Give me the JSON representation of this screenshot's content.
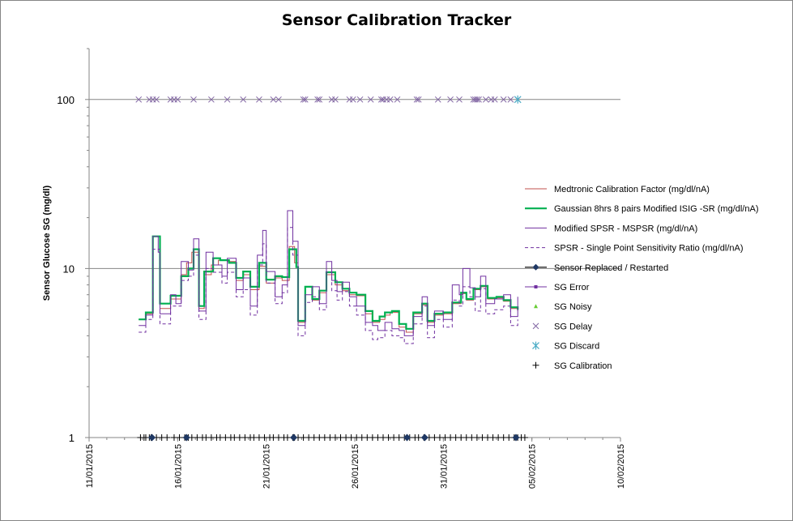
{
  "chart_data": {
    "type": "line",
    "title": "Sensor Calibration Tracker",
    "ylabel": "Sensor Glucose  SG  (mg/dl)",
    "xlabel": "",
    "y_scale": "log",
    "ylim": [
      1,
      200
    ],
    "y_ticks": [
      1,
      10,
      100
    ],
    "x_range_days": [
      "2015-01-11",
      "2015-02-10"
    ],
    "x_ticks": [
      "11/01/2015",
      "16/01/2015",
      "21/01/2015",
      "26/01/2015",
      "31/01/2015",
      "05/02/2015",
      "10/02/2015"
    ],
    "gridlines": "horizontal at 10 and 100",
    "legend_position": "right",
    "colors": {
      "medtronic": "#c0504d",
      "gaussian": "#00b050",
      "mspsr": "#7030a0",
      "spsr": "#7030a0",
      "replaced": "#1f3864",
      "sg_error": "#7030a0",
      "sg_noisy": "#66cc33",
      "sg_delay": "#8064a2",
      "sg_discard": "#4bacc6",
      "sg_calibration": "#000000"
    },
    "legend": [
      {
        "key": "medtronic",
        "label": "Medtronic Calibration Factor (mg/dl/nA)",
        "style": "line"
      },
      {
        "key": "gaussian",
        "label": "Gaussian 8hrs 8 pairs  Modified ISIG  -SR (mg/dl/nA)",
        "style": "line-thick"
      },
      {
        "key": "mspsr",
        "label": "Modified SPSR - MSPSR (mg/dl/nA)",
        "style": "line"
      },
      {
        "key": "spsr",
        "label": "SPSR - Single Point Sensitivity Ratio (mg/dl/nA)",
        "style": "dash"
      },
      {
        "key": "replaced",
        "label": "Sensor Replaced / Restarted",
        "style": "line-diamond"
      },
      {
        "key": "sg_error",
        "label": "SG Error",
        "style": "line-square"
      },
      {
        "key": "sg_noisy",
        "label": "SG Noisy",
        "style": "triangle"
      },
      {
        "key": "sg_delay",
        "label": "SG Delay",
        "style": "x"
      },
      {
        "key": "sg_discard",
        "label": "SG Discard",
        "style": "star"
      },
      {
        "key": "sg_calibration",
        "label": "SG Calibration",
        "style": "plus"
      }
    ],
    "series": [
      {
        "key": "medtronic",
        "style": "step",
        "points": [
          [
            13.8,
            5.0
          ],
          [
            14.2,
            5.4
          ],
          [
            14.6,
            15.5
          ],
          [
            15.0,
            5.8
          ],
          [
            15.6,
            6.6
          ],
          [
            16.2,
            9.2
          ],
          [
            16.5,
            10.8
          ],
          [
            16.8,
            12.5
          ],
          [
            17.2,
            5.8
          ],
          [
            17.5,
            9.2
          ],
          [
            17.9,
            10.5
          ],
          [
            18.3,
            11.2
          ],
          [
            18.8,
            11.0
          ],
          [
            19.3,
            8.5
          ],
          [
            19.7,
            9.2
          ],
          [
            20.1,
            7.5
          ],
          [
            20.6,
            10.3
          ],
          [
            21.0,
            8.2
          ],
          [
            21.5,
            8.8
          ],
          [
            21.9,
            8.5
          ],
          [
            22.3,
            13.5
          ],
          [
            22.6,
            10.8
          ],
          [
            22.8,
            4.8
          ],
          [
            23.2,
            7.8
          ],
          [
            23.6,
            6.5
          ],
          [
            24.0,
            7.2
          ],
          [
            24.4,
            9.2
          ],
          [
            24.9,
            8.0
          ],
          [
            25.3,
            7.4
          ],
          [
            25.7,
            7.0
          ],
          [
            26.1,
            6.9
          ],
          [
            26.6,
            5.4
          ],
          [
            27.0,
            4.8
          ],
          [
            27.4,
            5.0
          ],
          [
            27.7,
            5.3
          ],
          [
            28.0,
            5.5
          ],
          [
            28.5,
            4.5
          ],
          [
            28.9,
            4.2
          ],
          [
            29.3,
            5.4
          ],
          [
            29.8,
            6.1
          ],
          [
            30.1,
            4.8
          ],
          [
            30.5,
            5.3
          ],
          [
            31.0,
            5.4
          ],
          [
            31.5,
            6.2
          ],
          [
            32.0,
            7.1
          ],
          [
            32.3,
            6.5
          ],
          [
            32.7,
            7.5
          ],
          [
            33.1,
            7.8
          ],
          [
            33.5,
            6.6
          ],
          [
            34.0,
            6.7
          ],
          [
            34.4,
            6.4
          ],
          [
            34.8,
            5.8
          ],
          [
            35.2,
            5.6
          ]
        ]
      },
      {
        "key": "gaussian",
        "style": "step",
        "points": [
          [
            13.8,
            5.0
          ],
          [
            14.2,
            5.5
          ],
          [
            14.6,
            15.5
          ],
          [
            15.0,
            6.2
          ],
          [
            15.6,
            6.9
          ],
          [
            16.2,
            9.0
          ],
          [
            16.6,
            10.0
          ],
          [
            16.9,
            13.0
          ],
          [
            17.2,
            6.0
          ],
          [
            17.5,
            9.6
          ],
          [
            18.0,
            11.5
          ],
          [
            18.4,
            11.2
          ],
          [
            18.9,
            10.8
          ],
          [
            19.3,
            8.8
          ],
          [
            19.7,
            9.6
          ],
          [
            20.1,
            7.8
          ],
          [
            20.6,
            10.8
          ],
          [
            21.0,
            8.6
          ],
          [
            21.5,
            9.0
          ],
          [
            21.9,
            8.9
          ],
          [
            22.3,
            13.0
          ],
          [
            22.7,
            10.2
          ],
          [
            22.8,
            4.9
          ],
          [
            23.2,
            7.8
          ],
          [
            23.6,
            6.6
          ],
          [
            24.0,
            7.4
          ],
          [
            24.4,
            9.5
          ],
          [
            24.9,
            8.3
          ],
          [
            25.3,
            7.6
          ],
          [
            25.7,
            7.2
          ],
          [
            26.1,
            7.0
          ],
          [
            26.6,
            5.6
          ],
          [
            27.0,
            4.9
          ],
          [
            27.4,
            5.2
          ],
          [
            27.7,
            5.5
          ],
          [
            28.1,
            5.6
          ],
          [
            28.5,
            4.7
          ],
          [
            28.9,
            4.4
          ],
          [
            29.3,
            5.5
          ],
          [
            29.8,
            6.2
          ],
          [
            30.1,
            4.9
          ],
          [
            30.5,
            5.4
          ],
          [
            31.0,
            5.5
          ],
          [
            31.5,
            6.3
          ],
          [
            32.0,
            7.2
          ],
          [
            32.3,
            6.6
          ],
          [
            32.7,
            7.6
          ],
          [
            33.1,
            7.9
          ],
          [
            33.5,
            6.7
          ],
          [
            34.0,
            6.8
          ],
          [
            34.4,
            6.5
          ],
          [
            34.8,
            5.9
          ],
          [
            35.2,
            5.7
          ]
        ]
      },
      {
        "key": "mspsr",
        "style": "step",
        "points": [
          [
            13.8,
            4.6
          ],
          [
            14.2,
            5.3
          ],
          [
            14.6,
            15.5
          ],
          [
            14.9,
            12.5
          ],
          [
            15.0,
            5.4
          ],
          [
            15.6,
            7.0
          ],
          [
            15.9,
            6.2
          ],
          [
            16.2,
            11.0
          ],
          [
            16.6,
            9.8
          ],
          [
            16.9,
            15.0
          ],
          [
            17.2,
            5.6
          ],
          [
            17.6,
            12.5
          ],
          [
            18.0,
            10.5
          ],
          [
            18.5,
            9.0
          ],
          [
            18.8,
            11.5
          ],
          [
            19.3,
            7.5
          ],
          [
            19.7,
            8.8
          ],
          [
            20.1,
            6.0
          ],
          [
            20.5,
            12.0
          ],
          [
            20.8,
            16.8
          ],
          [
            21.0,
            9.6
          ],
          [
            21.5,
            6.8
          ],
          [
            21.9,
            8.0
          ],
          [
            22.2,
            22.0
          ],
          [
            22.5,
            14.5
          ],
          [
            22.8,
            4.6
          ],
          [
            23.2,
            7.0
          ],
          [
            23.6,
            7.8
          ],
          [
            24.0,
            6.2
          ],
          [
            24.4,
            11.0
          ],
          [
            24.7,
            8.5
          ],
          [
            25.0,
            7.3
          ],
          [
            25.3,
            8.3
          ],
          [
            25.7,
            6.8
          ],
          [
            26.1,
            6.0
          ],
          [
            26.6,
            4.8
          ],
          [
            27.0,
            4.6
          ],
          [
            27.3,
            4.3
          ],
          [
            27.7,
            4.8
          ],
          [
            28.1,
            4.4
          ],
          [
            28.5,
            4.3
          ],
          [
            28.8,
            4.0
          ],
          [
            29.3,
            5.2
          ],
          [
            29.8,
            6.8
          ],
          [
            30.1,
            4.6
          ],
          [
            30.5,
            5.6
          ],
          [
            31.0,
            5.0
          ],
          [
            31.5,
            8.0
          ],
          [
            31.9,
            7.0
          ],
          [
            32.1,
            10.0
          ],
          [
            32.5,
            7.7
          ],
          [
            32.8,
            6.8
          ],
          [
            33.1,
            9.0
          ],
          [
            33.4,
            6.2
          ],
          [
            33.9,
            6.6
          ],
          [
            34.4,
            7.0
          ],
          [
            34.8,
            5.2
          ],
          [
            35.2,
            6.8
          ]
        ]
      },
      {
        "key": "spsr",
        "style": "step",
        "points": [
          [
            13.8,
            4.2
          ],
          [
            14.2,
            5.0
          ],
          [
            14.6,
            13.0
          ],
          [
            15.0,
            4.7
          ],
          [
            15.6,
            6.0
          ],
          [
            16.2,
            8.5
          ],
          [
            16.6,
            9.0
          ],
          [
            16.9,
            12.0
          ],
          [
            17.2,
            5.0
          ],
          [
            17.6,
            10.0
          ],
          [
            18.0,
            9.5
          ],
          [
            18.5,
            8.2
          ],
          [
            18.8,
            9.5
          ],
          [
            19.3,
            6.8
          ],
          [
            19.7,
            7.5
          ],
          [
            20.1,
            5.3
          ],
          [
            20.5,
            10.5
          ],
          [
            20.8,
            14.0
          ],
          [
            21.0,
            8.2
          ],
          [
            21.5,
            6.2
          ],
          [
            21.9,
            7.2
          ],
          [
            22.2,
            17.5
          ],
          [
            22.5,
            12.0
          ],
          [
            22.8,
            4.0
          ],
          [
            23.2,
            6.3
          ],
          [
            23.6,
            6.8
          ],
          [
            24.0,
            5.7
          ],
          [
            24.4,
            9.5
          ],
          [
            24.7,
            7.4
          ],
          [
            25.0,
            6.5
          ],
          [
            25.3,
            7.3
          ],
          [
            25.7,
            6.0
          ],
          [
            26.1,
            5.3
          ],
          [
            26.6,
            4.3
          ],
          [
            27.0,
            3.8
          ],
          [
            27.3,
            3.9
          ],
          [
            27.7,
            4.3
          ],
          [
            28.1,
            4.0
          ],
          [
            28.5,
            3.9
          ],
          [
            28.8,
            3.6
          ],
          [
            29.3,
            4.7
          ],
          [
            29.8,
            6.0
          ],
          [
            30.1,
            3.9
          ],
          [
            30.5,
            5.0
          ],
          [
            31.0,
            4.5
          ],
          [
            31.5,
            6.5
          ],
          [
            31.9,
            6.0
          ],
          [
            32.1,
            7.8
          ],
          [
            32.5,
            6.8
          ],
          [
            32.8,
            5.6
          ],
          [
            33.1,
            7.6
          ],
          [
            33.4,
            5.4
          ],
          [
            33.9,
            5.7
          ],
          [
            34.4,
            6.0
          ],
          [
            34.8,
            4.6
          ],
          [
            35.2,
            5.0
          ]
        ]
      }
    ],
    "sg_delay_days": [
      13.8,
      14.4,
      14.6,
      14.8,
      15.6,
      15.8,
      16.0,
      16.9,
      17.9,
      18.8,
      19.7,
      20.6,
      21.4,
      21.7,
      23.1,
      23.2,
      23.9,
      24.0,
      24.7,
      24.9,
      25.7,
      25.9,
      26.3,
      26.9,
      27.5,
      27.6,
      27.8,
      28.0,
      28.4,
      29.5,
      29.6,
      30.7,
      31.4,
      31.9,
      32.7,
      32.8,
      32.9,
      33.0,
      33.4,
      33.7,
      33.9,
      34.4,
      34.8,
      35.2
    ],
    "sg_discard_days": [
      35.2
    ],
    "sg_calibration_days": [
      13.9,
      14.1,
      14.2,
      14.4,
      14.5,
      14.8,
      15.1,
      15.4,
      15.8,
      16.1,
      16.4,
      16.6,
      16.8,
      17.1,
      17.4,
      17.6,
      17.9,
      18.2,
      18.4,
      18.7,
      19.0,
      19.2,
      19.5,
      19.8,
      20.1,
      20.3,
      20.6,
      20.9,
      21.2,
      21.4,
      21.7,
      22.0,
      22.2,
      22.5,
      22.6,
      22.8,
      23.1,
      23.4,
      23.7,
      24.0,
      24.3,
      24.6,
      24.9,
      25.2,
      25.5,
      25.8,
      26.1,
      26.4,
      26.7,
      27.0,
      27.3,
      27.6,
      27.9,
      28.2,
      28.5,
      28.8,
      29.1,
      29.4,
      29.6,
      29.9,
      30.2,
      30.5,
      30.8,
      31.1,
      31.4,
      31.7,
      32.0,
      32.3,
      32.6,
      32.9,
      33.2,
      33.5,
      33.8,
      34.1,
      34.4,
      34.7,
      35.0,
      35.2,
      35.4,
      35.6
    ],
    "sensor_replaced_days": [
      14.55,
      16.5,
      22.55,
      28.95,
      29.95,
      35.1
    ]
  }
}
